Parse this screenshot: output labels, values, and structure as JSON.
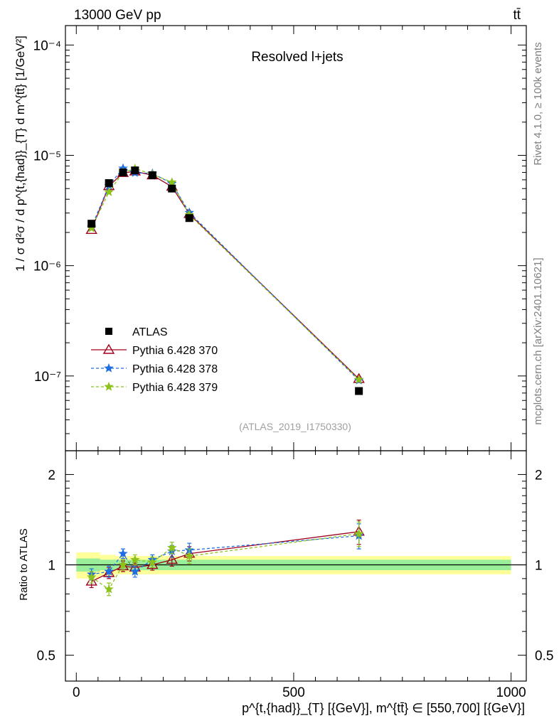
{
  "header": {
    "energy_label": "13000 GeV pp",
    "process_label": "tt̄"
  },
  "side": {
    "rivet": "Rivet 4.1.0, ≥ 100k events",
    "mcplots": "mcplots.cern.ch [arXiv:2401.10621]"
  },
  "chart_data": {
    "type": "scatter",
    "title": "Resolved l+jets",
    "analysis_label": "(ATLAS_2019_I1750330)",
    "ylabel_top": "1 / σ d²σ / d p^{t,{had}}_{T} d m^{tt̄} [1/GeV²]",
    "ylabel_ratio": "Ratio to ATLAS",
    "xlabel": "p^{t,{had}}_{T} [{GeV}], m^{tt̄} ∈ [550,700] [{GeV}]",
    "xlim": [
      -25,
      1035
    ],
    "ylim_top": [
      2.1e-08,
      0.00015
    ],
    "ylim_ratio": [
      0.41,
      2.4
    ],
    "y_log": true,
    "x_ticks": [
      "0",
      "500",
      "1000"
    ],
    "y_ticks_top": [
      "10⁻⁷",
      "10⁻⁶",
      "10⁻⁵",
      "10⁻⁴"
    ],
    "y_ticks_ratio": [
      "0.5",
      "1",
      "2"
    ],
    "legend_position": "center-left",
    "x": [
      35,
      75,
      107.5,
      135,
      175,
      220,
      260,
      650
    ],
    "bins": [
      [
        0,
        55
      ],
      [
        55,
        90
      ],
      [
        90,
        120
      ],
      [
        120,
        150
      ],
      [
        150,
        200
      ],
      [
        200,
        240
      ],
      [
        240,
        280
      ],
      [
        280,
        1000
      ]
    ],
    "atlas": {
      "name": "ATLAS",
      "values": [
        2.4e-06,
        5.6e-06,
        7e-06,
        7.3e-06,
        6.6e-06,
        5e-06,
        2.7e-06,
        7.3e-08
      ],
      "band_inner": [
        0.05,
        0.04,
        0.04,
        0.04,
        0.04,
        0.04,
        0.04,
        0.04
      ],
      "band_outer": [
        0.1,
        0.08,
        0.07,
        0.07,
        0.07,
        0.07,
        0.07,
        0.07
      ]
    },
    "series": [
      {
        "name": "Pythia 6.428 370",
        "color": "#a0001e",
        "dash": "",
        "marker": "triangle",
        "ratio": [
          0.88,
          0.94,
          0.99,
          0.98,
          1.0,
          1.04,
          1.09,
          1.29
        ],
        "err": [
          0.04,
          0.04,
          0.04,
          0.04,
          0.04,
          0.05,
          0.06,
          0.12
        ]
      },
      {
        "name": "Pythia 6.428 378",
        "color": "#1f6fe0",
        "dash": "4,3",
        "marker": "star",
        "ratio": [
          0.93,
          0.95,
          1.09,
          0.95,
          1.04,
          1.11,
          1.12,
          1.25
        ],
        "err": [
          0.04,
          0.04,
          0.04,
          0.04,
          0.04,
          0.05,
          0.06,
          0.12
        ]
      },
      {
        "name": "Pythia 6.428 379",
        "color": "#8cc21a",
        "dash": "4,3",
        "marker": "star",
        "ratio": [
          0.91,
          0.83,
          1.0,
          1.04,
          1.02,
          1.14,
          1.07,
          1.27
        ],
        "err": [
          0.04,
          0.04,
          0.04,
          0.04,
          0.04,
          0.05,
          0.06,
          0.12
        ]
      }
    ]
  }
}
